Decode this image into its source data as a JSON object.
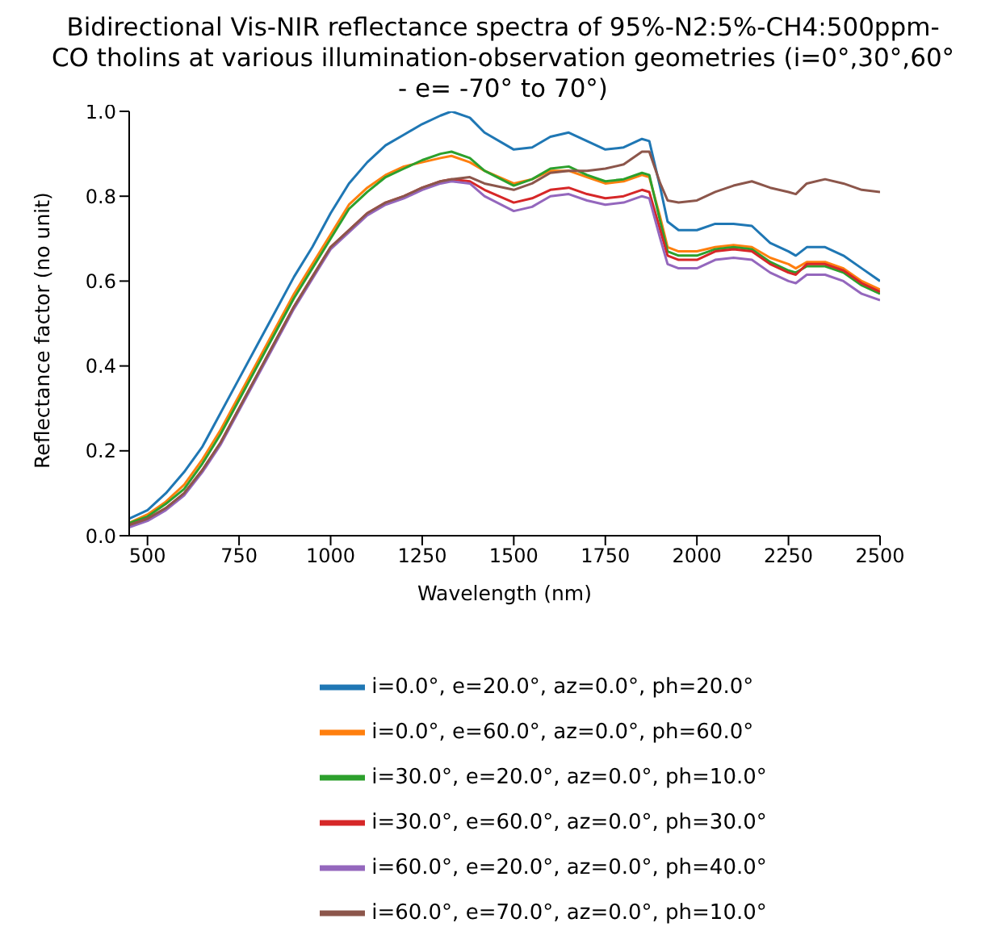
{
  "chart_data": {
    "type": "line",
    "title": "Bidirectional Vis-NIR reflectance spectra of 95%-N2:5%-CH4:500ppm-CO tholins at various illumination-observation geometries (i=0°,30°,60° - e= -70° to 70°)",
    "xlabel": "Wavelength (nm)",
    "ylabel": "Reflectance factor (no unit)",
    "x": [
      450,
      500,
      550,
      600,
      650,
      700,
      750,
      800,
      850,
      900,
      950,
      1000,
      1050,
      1100,
      1150,
      1200,
      1250,
      1300,
      1330,
      1380,
      1420,
      1500,
      1550,
      1600,
      1650,
      1700,
      1750,
      1800,
      1850,
      1870,
      1900,
      1920,
      1950,
      2000,
      2050,
      2100,
      2150,
      2200,
      2250,
      2270,
      2300,
      2350,
      2400,
      2450,
      2500
    ],
    "series": [
      {
        "name": "i=0.0°, e=20.0°, az=0.0°, ph=20.0°",
        "color": "#1f77b4",
        "values": [
          0.04,
          0.06,
          0.1,
          0.15,
          0.21,
          0.29,
          0.37,
          0.45,
          0.53,
          0.61,
          0.68,
          0.76,
          0.83,
          0.88,
          0.92,
          0.945,
          0.97,
          0.99,
          1.0,
          0.985,
          0.95,
          0.91,
          0.915,
          0.94,
          0.95,
          0.93,
          0.91,
          0.915,
          0.935,
          0.93,
          0.82,
          0.74,
          0.72,
          0.72,
          0.735,
          0.735,
          0.73,
          0.69,
          0.67,
          0.66,
          0.68,
          0.68,
          0.66,
          0.63,
          0.6
        ]
      },
      {
        "name": "i=0.0°, e=60.0°, az=0.0°, ph=60.0°",
        "color": "#ff7f0e",
        "values": [
          0.03,
          0.05,
          0.08,
          0.12,
          0.18,
          0.25,
          0.33,
          0.41,
          0.49,
          0.57,
          0.64,
          0.71,
          0.78,
          0.82,
          0.85,
          0.87,
          0.88,
          0.89,
          0.895,
          0.88,
          0.86,
          0.83,
          0.84,
          0.86,
          0.86,
          0.845,
          0.83,
          0.835,
          0.85,
          0.845,
          0.75,
          0.68,
          0.67,
          0.67,
          0.68,
          0.685,
          0.68,
          0.655,
          0.64,
          0.63,
          0.645,
          0.645,
          0.63,
          0.6,
          0.58
        ]
      },
      {
        "name": "i=30.0°, e=20.0°, az=0.0°, ph=10.0°",
        "color": "#2ca02c",
        "values": [
          0.03,
          0.045,
          0.075,
          0.11,
          0.17,
          0.24,
          0.32,
          0.4,
          0.48,
          0.56,
          0.63,
          0.7,
          0.77,
          0.81,
          0.845,
          0.865,
          0.885,
          0.9,
          0.905,
          0.89,
          0.86,
          0.825,
          0.84,
          0.865,
          0.87,
          0.85,
          0.835,
          0.84,
          0.855,
          0.85,
          0.74,
          0.67,
          0.66,
          0.66,
          0.675,
          0.68,
          0.675,
          0.645,
          0.625,
          0.62,
          0.635,
          0.635,
          0.62,
          0.59,
          0.57
        ]
      },
      {
        "name": "i=30.0°, e=60.0°, az=0.0°, ph=30.0°",
        "color": "#d62728",
        "values": [
          0.025,
          0.04,
          0.065,
          0.1,
          0.155,
          0.22,
          0.3,
          0.38,
          0.46,
          0.54,
          0.61,
          0.68,
          0.72,
          0.76,
          0.785,
          0.8,
          0.82,
          0.835,
          0.84,
          0.835,
          0.815,
          0.785,
          0.795,
          0.815,
          0.82,
          0.805,
          0.795,
          0.8,
          0.815,
          0.81,
          0.72,
          0.66,
          0.65,
          0.65,
          0.67,
          0.675,
          0.67,
          0.64,
          0.62,
          0.615,
          0.64,
          0.64,
          0.625,
          0.595,
          0.575
        ]
      },
      {
        "name": "i=60.0°, e=20.0°, az=0.0°, ph=40.0°",
        "color": "#9467bd",
        "values": [
          0.02,
          0.035,
          0.06,
          0.095,
          0.15,
          0.215,
          0.295,
          0.375,
          0.455,
          0.535,
          0.605,
          0.675,
          0.715,
          0.755,
          0.78,
          0.795,
          0.815,
          0.83,
          0.835,
          0.83,
          0.8,
          0.765,
          0.775,
          0.8,
          0.805,
          0.79,
          0.78,
          0.785,
          0.8,
          0.795,
          0.7,
          0.64,
          0.63,
          0.63,
          0.65,
          0.655,
          0.65,
          0.62,
          0.6,
          0.595,
          0.615,
          0.615,
          0.6,
          0.57,
          0.555
        ]
      },
      {
        "name": "i=60.0°, e=70.0°, az=0.0°, ph=10.0°",
        "color": "#8c564b",
        "values": [
          0.025,
          0.04,
          0.065,
          0.1,
          0.155,
          0.22,
          0.3,
          0.38,
          0.46,
          0.54,
          0.61,
          0.68,
          0.72,
          0.76,
          0.785,
          0.8,
          0.82,
          0.835,
          0.84,
          0.845,
          0.83,
          0.815,
          0.83,
          0.855,
          0.86,
          0.86,
          0.865,
          0.875,
          0.905,
          0.905,
          0.83,
          0.79,
          0.785,
          0.79,
          0.81,
          0.825,
          0.835,
          0.82,
          0.81,
          0.805,
          0.83,
          0.84,
          0.83,
          0.815,
          0.81
        ]
      }
    ],
    "xlim": [
      450,
      2500
    ],
    "xticks": [
      500,
      750,
      1000,
      1250,
      1500,
      1750,
      2000,
      2250,
      2500
    ],
    "ylim": [
      0,
      1
    ],
    "yticks": [
      {
        "value": 0,
        "label": "0.0"
      },
      0.2,
      0.4,
      0.6,
      0.8,
      {
        "value": 1,
        "label": "1.0"
      }
    ],
    "grid": false,
    "legend": "bottom",
    "marker": "none",
    "line_style": "solid"
  }
}
